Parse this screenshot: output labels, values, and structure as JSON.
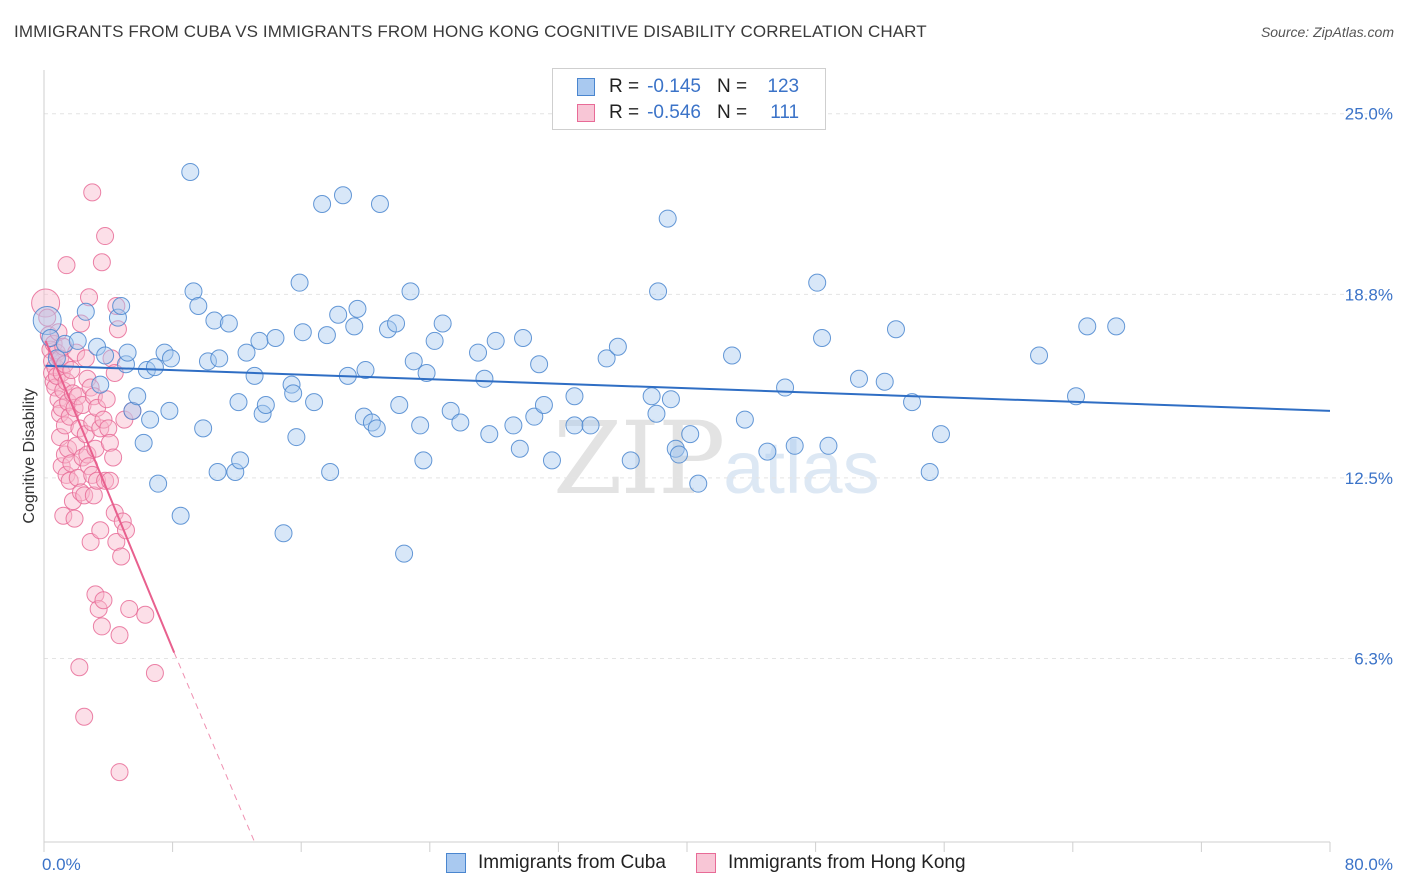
{
  "title": "IMMIGRANTS FROM CUBA VS IMMIGRANTS FROM HONG KONG COGNITIVE DISABILITY CORRELATION CHART",
  "source": "Source: ZipAtlas.com",
  "watermark": {
    "zip": "ZIP",
    "atlas": "atlas"
  },
  "legend_top": [
    {
      "r_label": "R =",
      "r_value": "-0.145",
      "n_label": "N =",
      "n_value": "123"
    },
    {
      "r_label": "R =",
      "r_value": "-0.546",
      "n_label": "N =",
      "n_value": "111"
    }
  ],
  "legend_bottom": [
    "Immigrants from Cuba",
    "Immigrants from Hong Kong"
  ],
  "colors": {
    "cuba_fill": "#a9c9f0",
    "cuba_stroke": "#4a86cf",
    "cuba_line": "#2f6ec4",
    "hk_fill": "#f8b9cd",
    "hk_stroke": "#e86b97",
    "hk_line": "#e8608e",
    "tick_label": "#3b73c8",
    "grid": "#e4e4e4"
  },
  "chart_data": {
    "type": "scatter",
    "title": "IMMIGRANTS FROM CUBA VS IMMIGRANTS FROM HONG KONG COGNITIVE DISABILITY CORRELATION CHART",
    "xlabel": "",
    "ylabel": "Cognitive Disability",
    "xlim": [
      0,
      80
    ],
    "ylim": [
      0,
      26.5
    ],
    "x_tick_labels": [
      "0.0%",
      "80.0%"
    ],
    "y_ticks": [
      6.3,
      12.5,
      18.8,
      25.0
    ],
    "y_tick_labels": [
      "6.3%",
      "12.5%",
      "18.8%",
      "25.0%"
    ],
    "grid": true,
    "series": [
      {
        "name": "Immigrants from Cuba",
        "trend": {
          "x": [
            0.1,
            80.0
          ],
          "y": [
            16.35,
            14.8
          ]
        },
        "points": [
          [
            0.2,
            17.9
          ],
          [
            0.4,
            17.3
          ],
          [
            0.8,
            16.6
          ],
          [
            1.3,
            17.1
          ],
          [
            2.1,
            17.2
          ],
          [
            2.6,
            18.2
          ],
          [
            3.3,
            17.0
          ],
          [
            3.5,
            15.7
          ],
          [
            3.8,
            16.7
          ],
          [
            4.6,
            18.0
          ],
          [
            4.8,
            18.4
          ],
          [
            5.1,
            16.4
          ],
          [
            5.2,
            16.8
          ],
          [
            5.5,
            14.8
          ],
          [
            5.8,
            15.3
          ],
          [
            6.2,
            13.7
          ],
          [
            6.4,
            16.2
          ],
          [
            6.6,
            14.5
          ],
          [
            6.9,
            16.3
          ],
          [
            7.1,
            12.3
          ],
          [
            7.5,
            16.8
          ],
          [
            7.8,
            14.8
          ],
          [
            7.9,
            16.6
          ],
          [
            8.5,
            11.2
          ],
          [
            9.1,
            23.0
          ],
          [
            9.3,
            18.9
          ],
          [
            9.6,
            18.4
          ],
          [
            9.9,
            14.2
          ],
          [
            10.2,
            16.5
          ],
          [
            10.6,
            17.9
          ],
          [
            10.8,
            12.7
          ],
          [
            10.9,
            16.6
          ],
          [
            11.5,
            17.8
          ],
          [
            11.9,
            12.7
          ],
          [
            12.1,
            15.1
          ],
          [
            12.2,
            13.1
          ],
          [
            12.6,
            16.8
          ],
          [
            13.1,
            16.0
          ],
          [
            13.4,
            17.2
          ],
          [
            13.6,
            14.7
          ],
          [
            13.8,
            15.0
          ],
          [
            14.4,
            17.3
          ],
          [
            14.9,
            10.6
          ],
          [
            15.4,
            15.7
          ],
          [
            15.5,
            15.4
          ],
          [
            15.7,
            13.9
          ],
          [
            15.9,
            19.2
          ],
          [
            16.1,
            17.5
          ],
          [
            16.8,
            15.1
          ],
          [
            17.3,
            21.9
          ],
          [
            17.6,
            17.4
          ],
          [
            17.8,
            12.7
          ],
          [
            18.3,
            18.1
          ],
          [
            18.6,
            22.2
          ],
          [
            18.9,
            16.0
          ],
          [
            19.3,
            17.7
          ],
          [
            19.5,
            18.3
          ],
          [
            19.9,
            14.6
          ],
          [
            20.0,
            16.2
          ],
          [
            20.4,
            14.4
          ],
          [
            20.7,
            14.2
          ],
          [
            20.9,
            21.9
          ],
          [
            21.4,
            17.6
          ],
          [
            21.9,
            17.8
          ],
          [
            22.1,
            15.0
          ],
          [
            22.4,
            9.9
          ],
          [
            22.8,
            18.9
          ],
          [
            23.0,
            16.5
          ],
          [
            23.4,
            14.3
          ],
          [
            23.6,
            13.1
          ],
          [
            23.8,
            16.1
          ],
          [
            24.3,
            17.2
          ],
          [
            24.8,
            17.8
          ],
          [
            25.3,
            14.8
          ],
          [
            25.9,
            14.4
          ],
          [
            27.0,
            16.8
          ],
          [
            27.4,
            15.9
          ],
          [
            27.7,
            14.0
          ],
          [
            28.1,
            17.2
          ],
          [
            29.2,
            14.3
          ],
          [
            29.6,
            13.5
          ],
          [
            29.8,
            17.3
          ],
          [
            30.5,
            14.6
          ],
          [
            30.8,
            16.4
          ],
          [
            31.1,
            15.0
          ],
          [
            31.6,
            13.1
          ],
          [
            33.0,
            14.3
          ],
          [
            33.0,
            15.3
          ],
          [
            34.0,
            14.3
          ],
          [
            35.0,
            16.6
          ],
          [
            35.7,
            17.0
          ],
          [
            36.5,
            13.1
          ],
          [
            37.8,
            15.3
          ],
          [
            38.1,
            14.7
          ],
          [
            38.2,
            18.9
          ],
          [
            38.8,
            21.4
          ],
          [
            39.0,
            15.2
          ],
          [
            39.3,
            13.5
          ],
          [
            39.5,
            13.3
          ],
          [
            40.2,
            14.0
          ],
          [
            40.7,
            12.3
          ],
          [
            42.8,
            16.7
          ],
          [
            43.6,
            14.5
          ],
          [
            45.0,
            13.4
          ],
          [
            46.1,
            15.6
          ],
          [
            46.7,
            13.6
          ],
          [
            48.1,
            19.2
          ],
          [
            48.4,
            17.3
          ],
          [
            48.8,
            13.6
          ],
          [
            50.7,
            15.9
          ],
          [
            52.3,
            15.8
          ],
          [
            53.0,
            17.6
          ],
          [
            54.0,
            15.1
          ],
          [
            55.1,
            12.7
          ],
          [
            55.8,
            14.0
          ],
          [
            61.9,
            16.7
          ],
          [
            64.2,
            15.3
          ],
          [
            64.9,
            17.7
          ],
          [
            66.7,
            17.7
          ]
        ],
        "sizes": {
          "0.2,17.9": "large"
        }
      },
      {
        "name": "Immigrants from Hong Kong",
        "trend": {
          "x": [
            0.1,
            8.1
          ],
          "y": [
            17.2,
            6.5
          ]
        },
        "trend_dashed": {
          "x": [
            8.1,
            13.1
          ],
          "y": [
            6.5,
            -0.3
          ]
        },
        "points": [
          [
            0.1,
            18.5
          ],
          [
            0.2,
            18.0
          ],
          [
            0.3,
            17.4
          ],
          [
            0.4,
            16.9
          ],
          [
            0.5,
            16.5
          ],
          [
            0.5,
            16.1
          ],
          [
            0.6,
            17.1
          ],
          [
            0.6,
            15.8
          ],
          [
            0.7,
            16.3
          ],
          [
            0.7,
            15.6
          ],
          [
            0.8,
            16.8
          ],
          [
            0.8,
            16.0
          ],
          [
            0.9,
            17.5
          ],
          [
            0.9,
            15.2
          ],
          [
            1.0,
            16.6
          ],
          [
            1.0,
            14.7
          ],
          [
            1.0,
            13.9
          ],
          [
            1.1,
            16.1
          ],
          [
            1.1,
            14.9
          ],
          [
            1.1,
            12.9
          ],
          [
            1.2,
            17.0
          ],
          [
            1.2,
            15.5
          ],
          [
            1.2,
            11.2
          ],
          [
            1.3,
            16.4
          ],
          [
            1.3,
            14.3
          ],
          [
            1.3,
            13.3
          ],
          [
            1.4,
            15.8
          ],
          [
            1.4,
            12.6
          ],
          [
            1.4,
            19.8
          ],
          [
            1.5,
            15.1
          ],
          [
            1.5,
            13.5
          ],
          [
            1.6,
            14.6
          ],
          [
            1.6,
            12.4
          ],
          [
            1.7,
            16.2
          ],
          [
            1.7,
            13.0
          ],
          [
            1.8,
            15.4
          ],
          [
            1.8,
            11.7
          ],
          [
            1.9,
            14.9
          ],
          [
            1.9,
            11.1
          ],
          [
            2.0,
            16.8
          ],
          [
            2.0,
            13.6
          ],
          [
            2.1,
            15.3
          ],
          [
            2.1,
            12.5
          ],
          [
            2.2,
            14.2
          ],
          [
            2.2,
            6.0
          ],
          [
            2.3,
            17.8
          ],
          [
            2.3,
            12.0
          ],
          [
            2.4,
            15.0
          ],
          [
            2.4,
            13.2
          ],
          [
            2.5,
            11.9
          ],
          [
            2.5,
            4.3
          ],
          [
            2.6,
            16.6
          ],
          [
            2.6,
            14.0
          ],
          [
            2.7,
            15.9
          ],
          [
            2.7,
            13.3
          ],
          [
            2.8,
            18.7
          ],
          [
            2.8,
            12.9
          ],
          [
            2.9,
            15.6
          ],
          [
            2.9,
            10.3
          ],
          [
            3.0,
            14.4
          ],
          [
            3.0,
            12.6
          ],
          [
            3.0,
            22.3
          ],
          [
            3.1,
            15.3
          ],
          [
            3.1,
            11.9
          ],
          [
            3.2,
            13.5
          ],
          [
            3.2,
            8.5
          ],
          [
            3.3,
            14.9
          ],
          [
            3.3,
            12.4
          ],
          [
            3.4,
            8.0
          ],
          [
            3.5,
            14.2
          ],
          [
            3.5,
            10.7
          ],
          [
            3.6,
            19.9
          ],
          [
            3.6,
            7.4
          ],
          [
            3.7,
            14.5
          ],
          [
            3.7,
            8.3
          ],
          [
            3.8,
            20.8
          ],
          [
            3.8,
            12.4
          ],
          [
            3.9,
            15.2
          ],
          [
            4.0,
            14.2
          ],
          [
            4.1,
            13.7
          ],
          [
            4.1,
            12.4
          ],
          [
            4.2,
            16.6
          ],
          [
            4.3,
            13.2
          ],
          [
            4.4,
            16.1
          ],
          [
            4.4,
            11.3
          ],
          [
            4.5,
            18.4
          ],
          [
            4.5,
            10.3
          ],
          [
            4.6,
            17.6
          ],
          [
            4.7,
            7.1
          ],
          [
            4.7,
            2.4
          ],
          [
            4.8,
            9.8
          ],
          [
            4.9,
            11.0
          ],
          [
            5.0,
            14.5
          ],
          [
            5.1,
            10.7
          ],
          [
            5.3,
            8.0
          ],
          [
            5.5,
            14.8
          ],
          [
            6.3,
            7.8
          ],
          [
            6.9,
            5.8
          ]
        ],
        "sizes": {
          "0.1,18.5": "large",
          "0.2,18.0": "large"
        }
      }
    ]
  }
}
